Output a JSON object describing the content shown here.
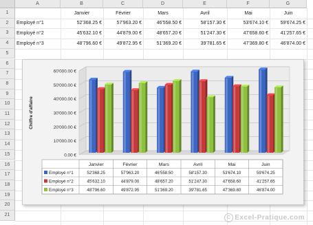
{
  "spreadsheet": {
    "columns": [
      "A",
      "B",
      "C",
      "D",
      "E",
      "F",
      "G"
    ],
    "rows": [
      "1",
      "2",
      "3",
      "4",
      "5",
      "6",
      "7",
      "8",
      "9",
      "10",
      "11",
      "12",
      "13",
      "14",
      "15",
      "16",
      "17",
      "18",
      "19",
      "20",
      "21"
    ],
    "header_row": [
      "",
      "Janvier",
      "Février",
      "Mars",
      "Avril",
      "Mai",
      "Juin"
    ],
    "data_rows": [
      [
        "Employé n°1",
        "52'368.25 €",
        "57'963.20 €",
        "46'558.50 €",
        "58'157.30 €",
        "53'674.10 €",
        "59'674.25 €"
      ],
      [
        "Employé n°2",
        "45'632.10 €",
        "44'879.00 €",
        "48'657.20 €",
        "51'247.30 €",
        "47'658.60 €",
        "41'257.65 €"
      ],
      [
        "Employé n°3",
        "48'796.60 €",
        "49'872.95 €",
        "51'369.20 €",
        "39'781.65 €",
        "47'369.80 €",
        "46'874.00 €"
      ]
    ]
  },
  "chart_data": {
    "type": "bar",
    "categories": [
      "Janvier",
      "Février",
      "Mars",
      "Avril",
      "Mai",
      "Juin"
    ],
    "ylabel": "Chiffre d'affaire",
    "ylim": [
      0,
      60000
    ],
    "yticks": [
      "0.00 €",
      "10'000.00 €",
      "20'000.00 €",
      "30'000.00 €",
      "40'000.00 €",
      "50'000.00 €",
      "60'000.00 €"
    ],
    "grid": true,
    "series": [
      {
        "name": "Employé n°1",
        "color": "#3b66c4",
        "values": [
          52368.25,
          57963.2,
          46558.5,
          58157.3,
          53674.1,
          59674.25
        ],
        "labels": [
          "52'368.25",
          "57'963.20",
          "46'558.50",
          "58'157.30",
          "53'674.10",
          "59'674.25"
        ]
      },
      {
        "name": "Employé n°2",
        "color": "#c8383a",
        "values": [
          45632.1,
          44879.0,
          48657.2,
          51247.3,
          47658.6,
          41257.65
        ],
        "labels": [
          "45'632.10",
          "44'879.00",
          "48'657.20",
          "51'247.30",
          "47'658.60",
          "41'257.65"
        ]
      },
      {
        "name": "Employé n°3",
        "color": "#8ec13e",
        "values": [
          48796.6,
          49872.95,
          51369.2,
          39781.65,
          47369.8,
          46874.0
        ],
        "labels": [
          "48'796.60",
          "49'872.95",
          "51'369.20",
          "39'781.65",
          "47'369.80",
          "46'874.00"
        ]
      }
    ]
  },
  "watermark": {
    "symbol": "C",
    "text": "Excel-Pratique.com"
  }
}
